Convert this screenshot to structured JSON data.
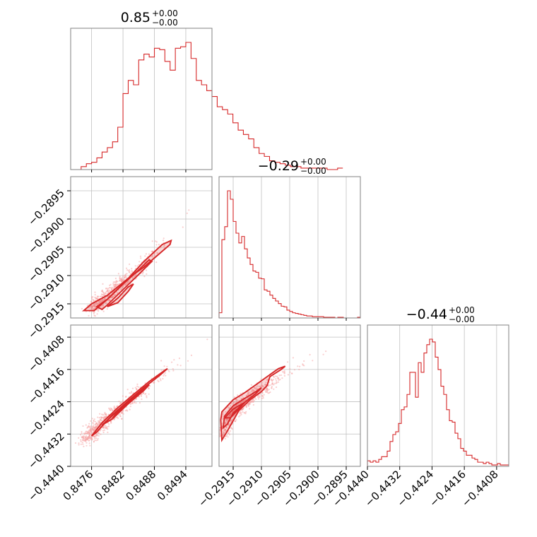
{
  "chart_data": {
    "type": "corner",
    "color": "#d62728",
    "grid": true,
    "parameters": [
      {
        "title_value": "0.85",
        "title_plus": "+0.00",
        "title_minus": "−0.00",
        "range": [
          0.8472,
          0.8499
        ],
        "ticks": [
          0.8476,
          0.8482,
          0.8488,
          0.8494
        ],
        "tick_labels": [
          "0.8476",
          "0.8482",
          "0.8488",
          "0.8494"
        ]
      },
      {
        "title_value": "−0.29",
        "title_plus": "+0.00",
        "title_minus": "−0.00",
        "range": [
          -0.29175,
          -0.28925
        ],
        "ticks": [
          -0.2915,
          -0.291,
          -0.2905,
          -0.29,
          -0.2895
        ],
        "tick_labels": [
          "−0.2915",
          "−0.2910",
          "−0.2905",
          "−0.2900",
          "−0.2895"
        ]
      },
      {
        "title_value": "−0.44",
        "title_plus": "+0.00",
        "title_minus": "−0.00",
        "range": [
          -0.444,
          -0.4405
        ],
        "ticks": [
          -0.444,
          -0.4432,
          -0.4424,
          -0.4416,
          -0.4408
        ],
        "tick_labels": [
          "−0.4440",
          "−0.4432",
          "−0.4424",
          "−0.4416",
          "−0.4408"
        ]
      }
    ],
    "histograms": [
      {
        "param": 0,
        "edges_start": 0.8474,
        "bin_width": 0.0001,
        "counts": [
          2,
          4,
          5,
          8,
          12,
          15,
          19,
          29,
          52,
          61,
          58,
          75,
          79,
          77,
          83,
          82,
          74,
          68,
          83,
          84,
          87,
          76,
          61,
          58,
          54,
          50,
          43,
          41,
          38,
          32,
          27,
          24,
          21,
          15,
          11,
          9,
          6,
          5,
          4,
          3,
          2,
          2,
          1,
          1,
          1,
          1,
          1,
          0,
          0,
          1
        ]
      },
      {
        "param": 1,
        "edges_start": -0.29175,
        "bin_width": 5e-05,
        "counts": [
          8,
          120,
          140,
          195,
          182,
          148,
          130,
          115,
          125,
          106,
          92,
          82,
          72,
          70,
          61,
          60,
          43,
          41,
          35,
          30,
          26,
          22,
          18,
          17,
          12,
          10,
          8,
          7,
          6,
          5,
          4,
          3,
          3,
          2,
          2,
          2,
          2,
          1,
          1,
          1,
          1,
          0,
          1,
          1,
          0,
          0,
          0,
          0,
          0,
          1
        ]
      },
      {
        "param": 2,
        "edges_start": -0.444,
        "bin_width": 7e-05,
        "counts": [
          4,
          3,
          4,
          3,
          5,
          7,
          7,
          11,
          18,
          23,
          25,
          31,
          41,
          43,
          52,
          68,
          68,
          50,
          75,
          68,
          82,
          88,
          92,
          90,
          79,
          70,
          58,
          52,
          41,
          33,
          32,
          24,
          20,
          13,
          11,
          8,
          8,
          6,
          5,
          3,
          3,
          2,
          3,
          2,
          1,
          1,
          2,
          1,
          1,
          1
        ]
      }
    ],
    "pairs": [
      {
        "x_param": 0,
        "y_param": 1,
        "contour_levels": [
          [
            [
              0.84745,
              -0.29162
            ],
            [
              0.8476,
              -0.2915
            ],
            [
              0.8479,
              -0.29135
            ],
            [
              0.8483,
              -0.29105
            ],
            [
              0.8486,
              -0.29085
            ],
            [
              0.84885,
              -0.29065
            ],
            [
              0.8491,
              -0.29045
            ],
            [
              0.84912,
              -0.29038
            ],
            [
              0.84895,
              -0.29045
            ],
            [
              0.8486,
              -0.29075
            ],
            [
              0.8482,
              -0.29115
            ],
            [
              0.8479,
              -0.29142
            ],
            [
              0.84765,
              -0.29162
            ]
          ],
          [
            [
              0.8477,
              -0.29155
            ],
            [
              0.8479,
              -0.29142
            ],
            [
              0.8482,
              -0.29115
            ],
            [
              0.8485,
              -0.2909
            ],
            [
              0.8487,
              -0.29072
            ],
            [
              0.84875,
              -0.29075
            ],
            [
              0.8485,
              -0.29098
            ],
            [
              0.8482,
              -0.29125
            ],
            [
              0.8479,
              -0.29152
            ],
            [
              0.8478,
              -0.2916
            ]
          ],
          [
            [
              0.8479,
              -0.29155
            ],
            [
              0.8481,
              -0.2914
            ],
            [
              0.8483,
              -0.2912
            ],
            [
              0.8484,
              -0.29115
            ],
            [
              0.8483,
              -0.29128
            ],
            [
              0.8481,
              -0.29148
            ]
          ]
        ],
        "points_center": [
          [
            0.8476,
            -0.29158
          ],
          [
            0.8479,
            -0.29138
          ],
          [
            0.8482,
            -0.29112
          ],
          [
            0.8485,
            -0.29088
          ],
          [
            0.8488,
            -0.29058
          ],
          [
            0.8491,
            -0.29028
          ],
          [
            0.8494,
            -0.29
          ],
          [
            0.8496,
            -0.2897
          ]
        ]
      },
      {
        "x_param": 0,
        "y_param": 2,
        "contour_levels": [
          [
            [
              0.8476,
              -0.44325
            ],
            [
              0.8478,
              -0.44292
            ],
            [
              0.8481,
              -0.44255
            ],
            [
              0.8484,
              -0.44222
            ],
            [
              0.8487,
              -0.4419
            ],
            [
              0.849,
              -0.44162
            ],
            [
              0.84905,
              -0.44158
            ],
            [
              0.8489,
              -0.44175
            ],
            [
              0.8486,
              -0.44205
            ],
            [
              0.8483,
              -0.44238
            ],
            [
              0.848,
              -0.44272
            ],
            [
              0.8477,
              -0.44315
            ]
          ],
          [
            [
              0.8478,
              -0.44298
            ],
            [
              0.8481,
              -0.44262
            ],
            [
              0.8484,
              -0.4423
            ],
            [
              0.8487,
              -0.44198
            ],
            [
              0.8486,
              -0.44212
            ],
            [
              0.8483,
              -0.44245
            ],
            [
              0.848,
              -0.44282
            ]
          ],
          [
            [
              0.848,
              -0.4428
            ],
            [
              0.8483,
              -0.44245
            ],
            [
              0.8485,
              -0.44222
            ],
            [
              0.8483,
              -0.4424
            ],
            [
              0.8481,
              -0.44265
            ]
          ]
        ],
        "points_center": [
          [
            0.84745,
            -0.44335
          ],
          [
            0.8477,
            -0.44305
          ],
          [
            0.848,
            -0.44272
          ],
          [
            0.8483,
            -0.4424
          ],
          [
            0.8486,
            -0.44208
          ],
          [
            0.8489,
            -0.44176
          ],
          [
            0.8492,
            -0.44145
          ],
          [
            0.8495,
            -0.44118
          ],
          [
            0.8498,
            -0.4409
          ]
        ]
      },
      {
        "x_param": 1,
        "y_param": 2,
        "contour_levels": [
          [
            [
              -0.2917,
              -0.44335
            ],
            [
              -0.29172,
              -0.44285
            ],
            [
              -0.2917,
              -0.44265
            ],
            [
              -0.2915,
              -0.44235
            ],
            [
              -0.2913,
              -0.44218
            ],
            [
              -0.2911,
              -0.44198
            ],
            [
              -0.2909,
              -0.44178
            ],
            [
              -0.2907,
              -0.44158
            ],
            [
              -0.29058,
              -0.44152
            ],
            [
              -0.29065,
              -0.4416
            ],
            [
              -0.29085,
              -0.44178
            ],
            [
              -0.2909,
              -0.442
            ],
            [
              -0.291,
              -0.44215
            ],
            [
              -0.2912,
              -0.44235
            ],
            [
              -0.2914,
              -0.44262
            ],
            [
              -0.2916,
              -0.44312
            ]
          ],
          [
            [
              -0.29168,
              -0.44305
            ],
            [
              -0.29165,
              -0.44275
            ],
            [
              -0.2915,
              -0.4425
            ],
            [
              -0.2913,
              -0.44232
            ],
            [
              -0.2911,
              -0.44215
            ],
            [
              -0.291,
              -0.44205
            ],
            [
              -0.2911,
              -0.4422
            ],
            [
              -0.2913,
              -0.44242
            ],
            [
              -0.2915,
              -0.44268
            ],
            [
              -0.2916,
              -0.44295
            ]
          ],
          [
            [
              -0.29165,
              -0.4428
            ],
            [
              -0.2915,
              -0.44258
            ],
            [
              -0.2913,
              -0.44242
            ],
            [
              -0.2914,
              -0.44258
            ],
            [
              -0.29155,
              -0.4428
            ]
          ]
        ],
        "points_center": [
          [
            -0.2917,
            -0.4432
          ],
          [
            -0.2915,
            -0.44262
          ],
          [
            -0.2913,
            -0.4424
          ],
          [
            -0.2911,
            -0.4422
          ],
          [
            -0.2909,
            -0.442
          ],
          [
            -0.2907,
            -0.4418
          ],
          [
            -0.2904,
            -0.44155
          ],
          [
            -0.2901,
            -0.4413
          ],
          [
            -0.2898,
            -0.4411
          ],
          [
            -0.2896,
            -0.4409
          ]
        ]
      }
    ]
  }
}
